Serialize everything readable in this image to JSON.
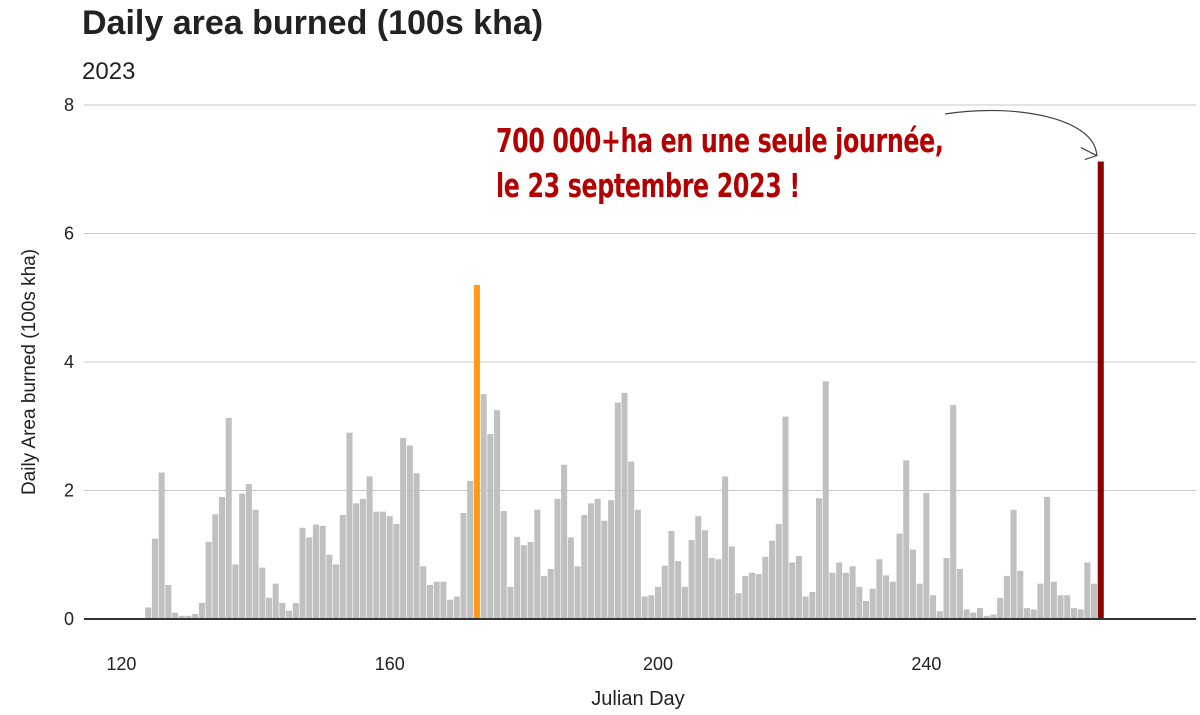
{
  "chart_data": {
    "type": "bar",
    "title": "Daily area burned (100s kha)",
    "subtitle": "2023",
    "xlabel": "Julian Day",
    "ylabel": "Daily Area burned (100s kha)",
    "xlim": [
      110,
      268
    ],
    "ylim": [
      0,
      8
    ],
    "x_ticks": [
      120,
      160,
      200,
      240
    ],
    "y_ticks": [
      0,
      2,
      4,
      6,
      8
    ],
    "grid": "horizontal",
    "legend": "none",
    "colors": {
      "default": "#c0c0c0",
      "highlight_orange": "#ff9a1a",
      "highlight_dark": "#8b0000",
      "annotation": "#b30000"
    },
    "x": [
      121,
      122,
      123,
      124,
      125,
      126,
      127,
      128,
      129,
      130,
      131,
      132,
      133,
      134,
      135,
      136,
      137,
      138,
      139,
      140,
      141,
      142,
      143,
      144,
      145,
      146,
      147,
      148,
      149,
      150,
      151,
      152,
      153,
      154,
      155,
      156,
      157,
      158,
      159,
      160,
      161,
      162,
      163,
      164,
      165,
      166,
      167,
      168,
      169,
      170,
      171,
      172,
      173,
      174,
      175,
      176,
      177,
      178,
      179,
      180,
      181,
      182,
      183,
      184,
      185,
      186,
      187,
      188,
      189,
      190,
      191,
      192,
      193,
      194,
      195,
      196,
      197,
      198,
      199,
      200,
      201,
      202,
      203,
      204,
      205,
      206,
      207,
      208,
      209,
      210,
      211,
      212,
      213,
      214,
      215,
      216,
      217,
      218,
      219,
      220,
      221,
      222,
      223,
      224,
      225,
      226,
      227,
      228,
      229,
      230,
      231,
      232,
      233,
      234,
      235,
      236,
      237,
      238,
      239,
      240,
      241,
      242,
      243,
      244,
      245,
      246,
      247,
      248,
      249,
      250,
      251,
      252,
      253,
      254,
      255,
      256,
      257,
      258,
      259,
      260,
      261,
      262,
      263,
      264,
      265,
      266
    ],
    "values": [
      0,
      0,
      0,
      0.18,
      1.25,
      2.28,
      0.53,
      0.1,
      0.05,
      0.05,
      0.08,
      0.25,
      1.2,
      1.63,
      1.9,
      3.13,
      0.85,
      1.95,
      2.1,
      1.7,
      0.8,
      0.33,
      0.55,
      0.25,
      0.13,
      0.25,
      1.42,
      1.27,
      1.47,
      1.45,
      1.0,
      0.85,
      1.62,
      2.9,
      1.8,
      1.87,
      2.22,
      1.67,
      1.67,
      1.6,
      1.48,
      2.82,
      2.7,
      2.27,
      0.82,
      0.53,
      0.58,
      0.58,
      0.3,
      0.35,
      1.65,
      2.15,
      5.2,
      3.5,
      2.88,
      3.25,
      1.68,
      0.5,
      1.28,
      1.15,
      1.2,
      1.7,
      0.67,
      0.78,
      1.87,
      2.4,
      1.27,
      0.82,
      1.62,
      1.8,
      1.87,
      1.53,
      1.85,
      3.37,
      3.52,
      2.45,
      1.7,
      0.35,
      0.37,
      0.5,
      0.83,
      1.37,
      0.9,
      0.5,
      1.23,
      1.6,
      1.38,
      0.95,
      0.93,
      2.22,
      1.13,
      0.4,
      0.67,
      0.72,
      0.7,
      0.97,
      1.22,
      1.48,
      3.15,
      0.88,
      0.98,
      0.35,
      0.42,
      1.88,
      3.7,
      0.72,
      0.88,
      0.72,
      0.82,
      0.5,
      0.28,
      0.47,
      0.93,
      0.68,
      0.58,
      1.33,
      2.47,
      1.08,
      0.55,
      1.96,
      0.37,
      0.12,
      0.95,
      3.33,
      0.78,
      0.15,
      0.1,
      0.17,
      0.05,
      0.07,
      0.33,
      0.67,
      1.7,
      0.75,
      0.17,
      0.15,
      0.55,
      1.9,
      0.58,
      0.37,
      0.37,
      0.17,
      0.15,
      0.88,
      0.55,
      7.12
    ],
    "highlights": [
      {
        "x": 173,
        "value": 5.2,
        "color": "#ff9a1a"
      },
      {
        "x": 266,
        "value": 7.12,
        "color": "#8b0000"
      }
    ],
    "annotations": [
      "700 000+ha en une seule journée,",
      "le 23 septembre 2023 !"
    ]
  }
}
